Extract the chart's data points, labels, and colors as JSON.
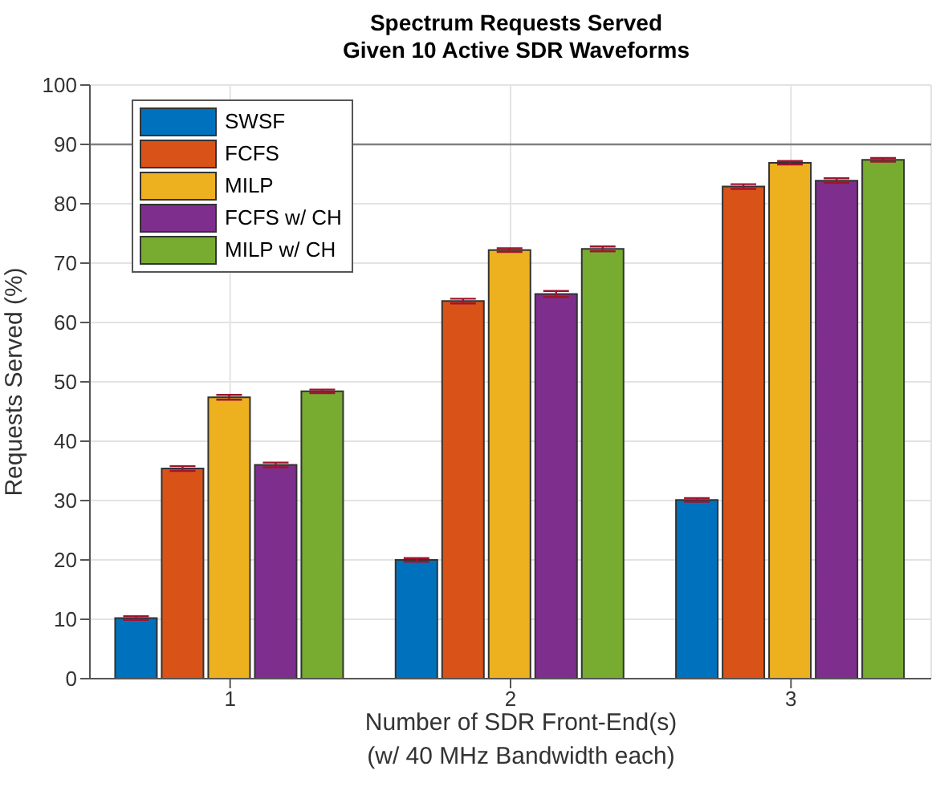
{
  "chart_data": {
    "type": "bar",
    "title": "Spectrum Requests Served\nGiven 10 Active SDR Waveforms",
    "xlabel": "Number of SDR Front-End(s)\n(w/ 40 MHz Bandwidth each)",
    "ylabel": "Requests Served (%)",
    "categories": [
      "1",
      "2",
      "3"
    ],
    "series": [
      {
        "name": "SWSF",
        "color": "#0072bd",
        "values": [
          10.2,
          20.0,
          30.1
        ],
        "errors": [
          0.3,
          0.3,
          0.3
        ]
      },
      {
        "name": "FCFS",
        "color": "#d95319",
        "values": [
          35.4,
          63.6,
          82.9
        ],
        "errors": [
          0.4,
          0.4,
          0.4
        ]
      },
      {
        "name": "MILP",
        "color": "#edb120",
        "values": [
          47.4,
          72.2,
          86.9
        ],
        "errors": [
          0.4,
          0.3,
          0.3
        ]
      },
      {
        "name": "FCFS w/ CH",
        "color": "#7e2f8e",
        "values": [
          36.0,
          64.8,
          83.9
        ],
        "errors": [
          0.4,
          0.5,
          0.4
        ]
      },
      {
        "name": "MILP w/ CH",
        "color": "#77ac30",
        "values": [
          48.4,
          72.4,
          87.4
        ],
        "errors": [
          0.3,
          0.4,
          0.3
        ]
      }
    ],
    "ylim": [
      0,
      100
    ],
    "yticks": [
      0,
      10,
      20,
      30,
      40,
      50,
      60,
      70,
      80,
      90,
      100
    ],
    "grid": true,
    "legend": "top left",
    "ref_lines": [
      {
        "axis": "y",
        "value": 90,
        "color": "#808080"
      }
    ]
  }
}
